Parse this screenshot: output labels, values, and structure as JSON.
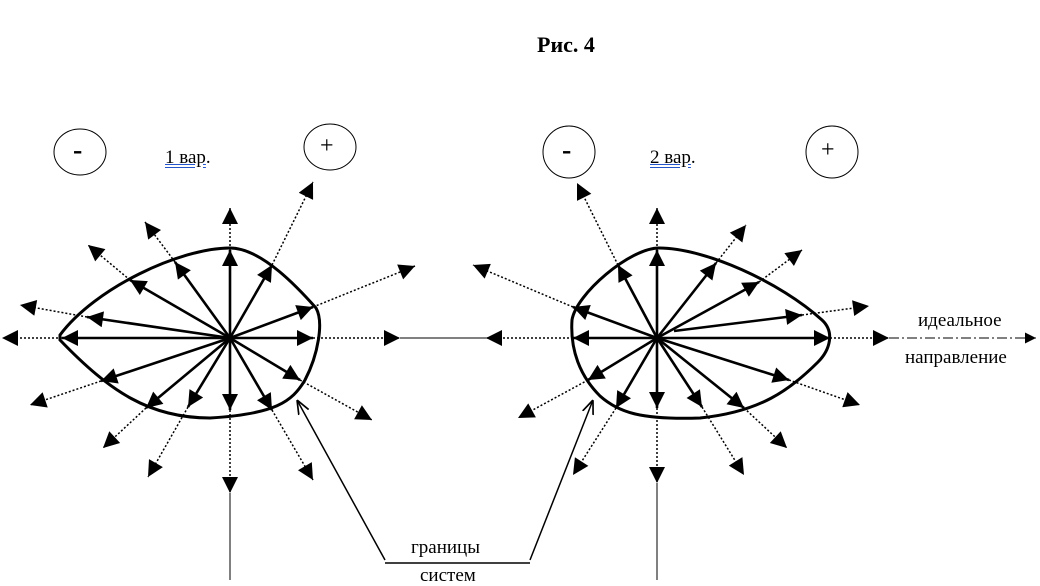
{
  "title": "Рис. 4",
  "variants": [
    {
      "label": "1  вар",
      "suffix": ".",
      "minus": "-",
      "plus": "+"
    },
    {
      "label": "2  вар",
      "suffix": ".",
      "minus": "-",
      "plus": "+"
    }
  ],
  "ideal_direction": {
    "line1": "идеальное",
    "line2": "направление"
  },
  "boundaries": {
    "line1": "границы",
    "line2": "систем"
  }
}
